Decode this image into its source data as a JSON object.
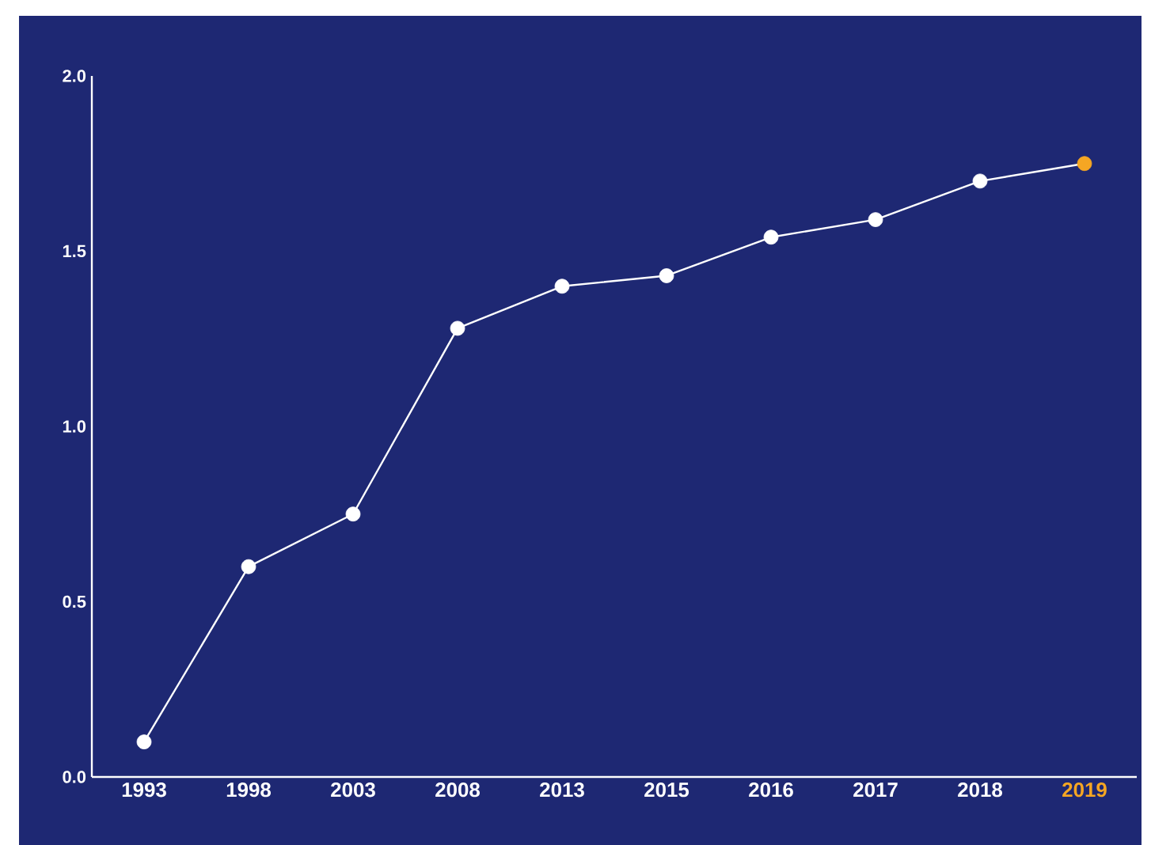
{
  "chart_data": {
    "type": "line",
    "categories": [
      "1993",
      "1998",
      "2003",
      "2008",
      "2013",
      "2015",
      "2016",
      "2017",
      "2018",
      "2019"
    ],
    "values": [
      0.1,
      0.6,
      0.75,
      1.28,
      1.4,
      1.43,
      1.54,
      1.59,
      1.7,
      1.75
    ],
    "color": "#ffffff",
    "colors": [
      "#ffffff",
      "#ffffff",
      "#ffffff",
      "#ffffff",
      "#ffffff",
      "#ffffff",
      "#ffffff",
      "#ffffff",
      "#ffffff",
      "#f5a623"
    ],
    "marker": "circle",
    "line_style": "solid",
    "ylim": [
      0,
      2
    ],
    "yticks": [
      {
        "value": 0,
        "label": "0.0"
      },
      {
        "value": 0.5,
        "label": "0.5"
      },
      {
        "value": 1,
        "label": "1.0"
      },
      {
        "value": 1.5,
        "label": "1.5"
      },
      {
        "value": 2,
        "label": "2.0"
      }
    ],
    "grid": false
  }
}
